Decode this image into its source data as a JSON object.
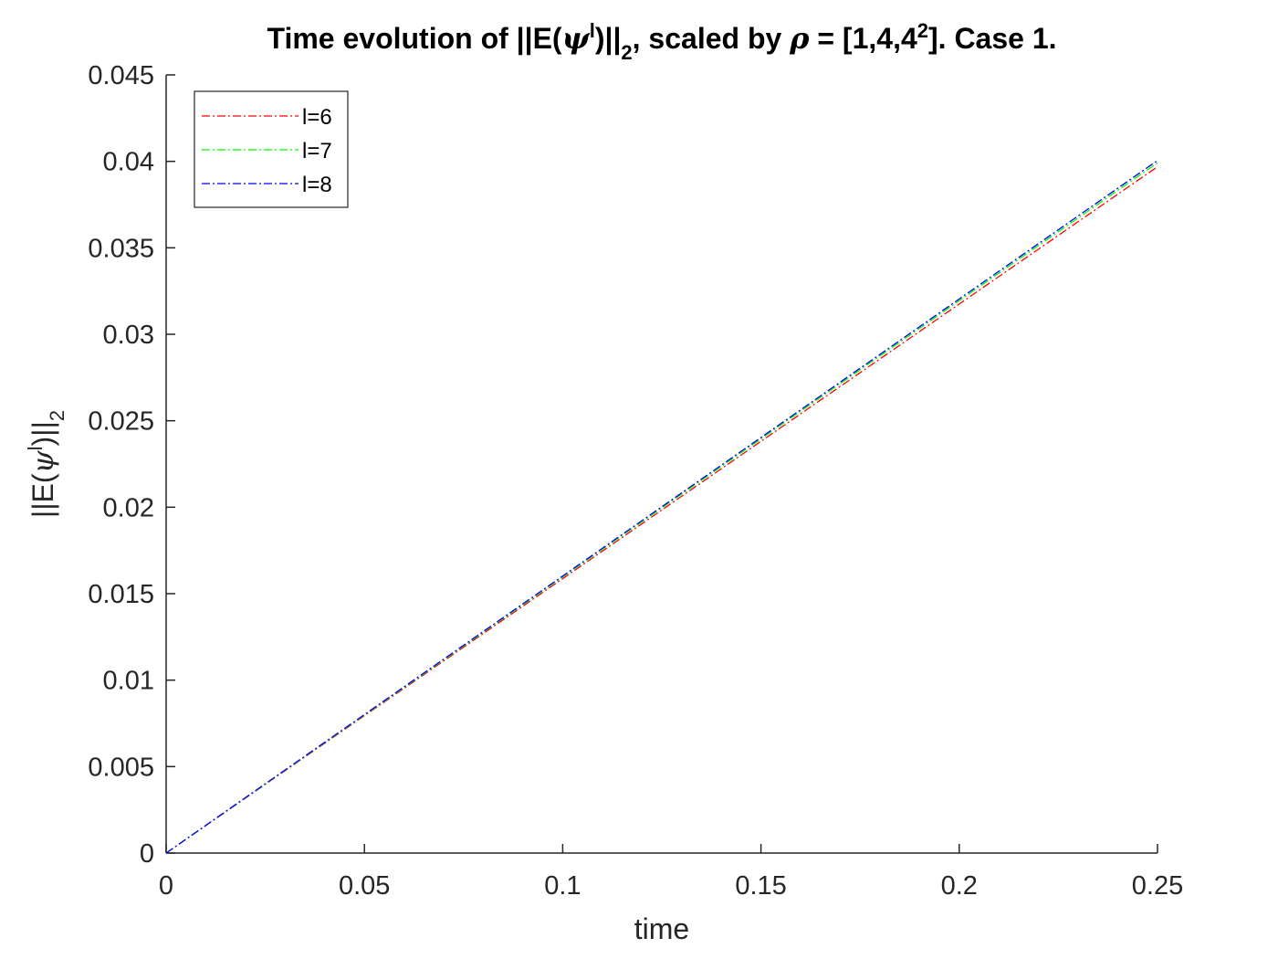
{
  "chart_data": {
    "type": "line",
    "title": "Time evolution of ||E(ψˡ)||₂, scaled by ρ = [1,4,4²]. Case 1.",
    "title_parts": {
      "p1": "Time evolution of ||E(",
      "psi": "ψ",
      "sup_l": "l",
      "p2": ")||",
      "sub_2": "2",
      "p3": ", scaled by ",
      "rho": "ρ",
      "p4": " = [1,4,4",
      "sup_2": "2",
      "p5": "]. Case 1."
    },
    "xlabel": "time",
    "ylabel": "||E(ψˡ)||₂",
    "ylabel_parts": {
      "p1": "||E(",
      "psi": "ψ",
      "sup_l": "l",
      "p2": ")||",
      "sub_2": "2"
    },
    "xlim": [
      0,
      0.25
    ],
    "ylim": [
      0,
      0.045
    ],
    "xticks": [
      0,
      0.05,
      0.1,
      0.15,
      0.2,
      0.25
    ],
    "xtick_labels": [
      "0",
      "0.05",
      "0.1",
      "0.15",
      "0.2",
      "0.25"
    ],
    "yticks": [
      0,
      0.005,
      0.01,
      0.015,
      0.02,
      0.025,
      0.03,
      0.035,
      0.04,
      0.045
    ],
    "ytick_labels": [
      "0",
      "0.005",
      "0.01",
      "0.015",
      "0.02",
      "0.025",
      "0.03",
      "0.035",
      "0.04",
      "0.045"
    ],
    "grid": false,
    "legend_position": "top-left",
    "line_style": "dash-dot",
    "series": [
      {
        "name": "l=6",
        "color": "#ff0000",
        "x": [
          0,
          0.05,
          0.1,
          0.15,
          0.2,
          0.25
        ],
        "y": [
          0,
          0.00794,
          0.01587,
          0.02381,
          0.03175,
          0.03969
        ]
      },
      {
        "name": "l=7",
        "color": "#00ff00",
        "x": [
          0,
          0.05,
          0.1,
          0.15,
          0.2,
          0.25
        ],
        "y": [
          0,
          0.00798,
          0.01597,
          0.02395,
          0.03194,
          0.03992
        ]
      },
      {
        "name": "l=8",
        "color": "#0000ff",
        "x": [
          0,
          0.05,
          0.1,
          0.15,
          0.2,
          0.25
        ],
        "y": [
          0,
          0.00801,
          0.01602,
          0.02403,
          0.03204,
          0.04005
        ]
      }
    ]
  }
}
